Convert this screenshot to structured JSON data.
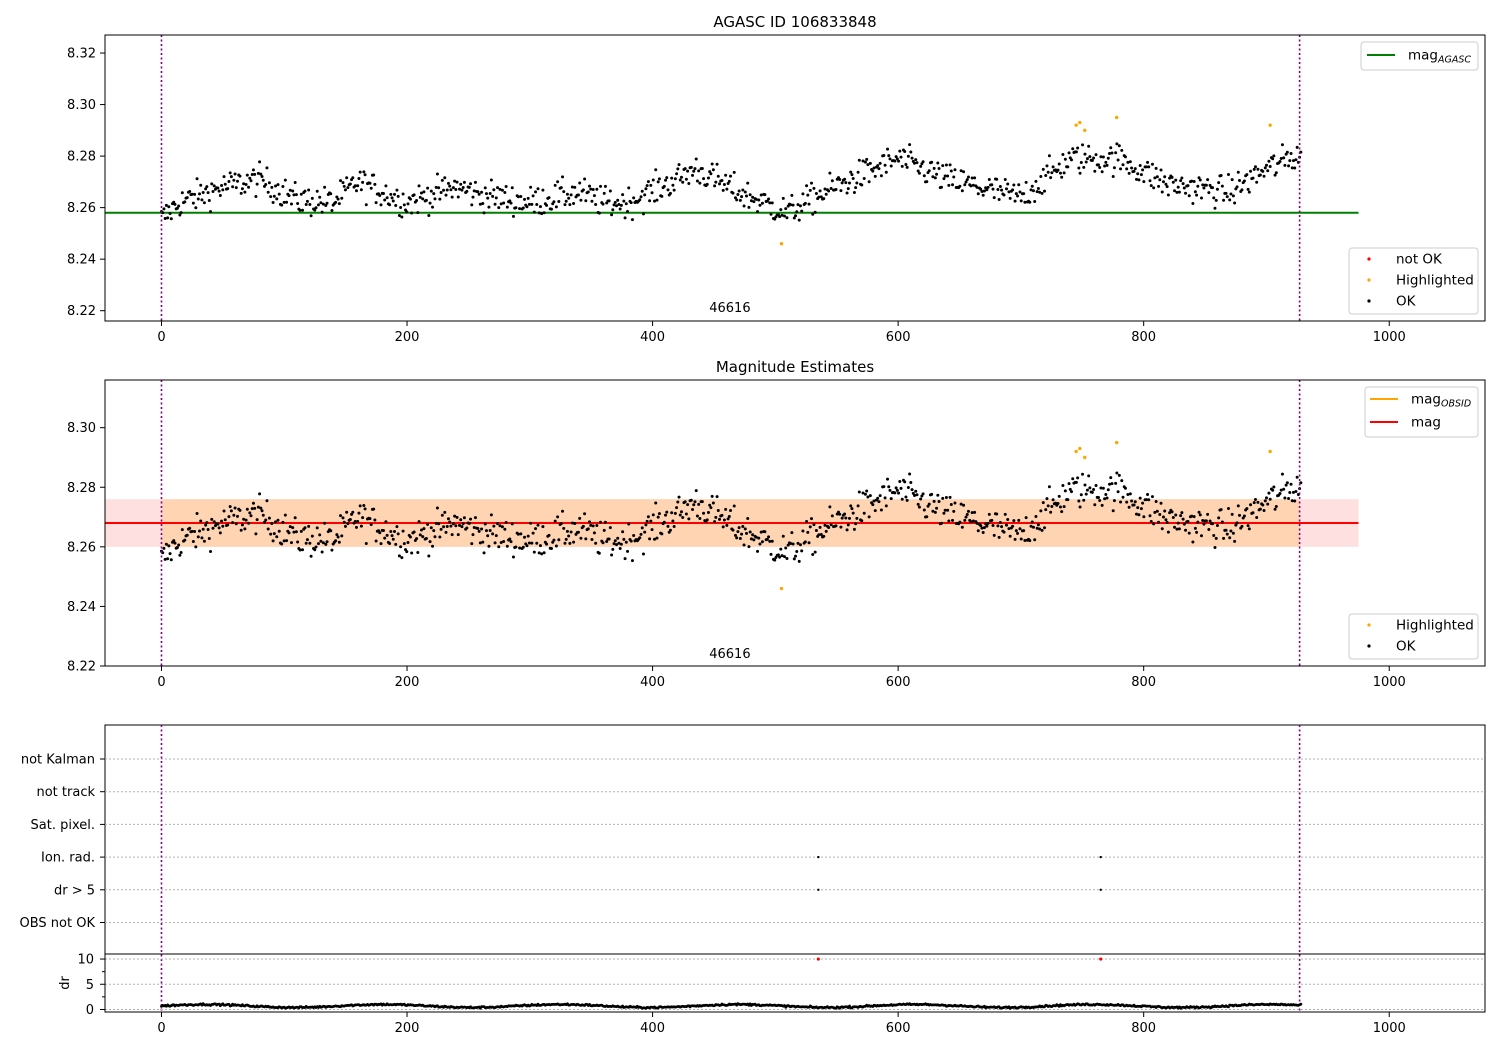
{
  "chart_data": [
    {
      "type": "scatter",
      "title": "AGASC ID 106833848",
      "xlim": [
        -46,
        1078
      ],
      "ylim": [
        8.216,
        8.327
      ],
      "xticks": [
        0,
        200,
        400,
        600,
        800,
        1000
      ],
      "yticks": [
        8.22,
        8.24,
        8.26,
        8.28,
        8.3,
        8.32
      ],
      "obsid_label": {
        "text": "46616",
        "x": 463,
        "y": 8.221
      },
      "obsid_boundaries": [
        0,
        927
      ],
      "mag_agasc": 8.258,
      "mag_agasc_xrange": [
        -46,
        975
      ],
      "legend_lines": [
        {
          "name": "mag",
          "sub": "AGASC",
          "color": "#008000"
        }
      ],
      "legend_points": [
        {
          "name": "not OK",
          "color": "#ff0000"
        },
        {
          "name": "Highlighted",
          "color": "#ffa500"
        },
        {
          "name": "OK",
          "color": "#000000"
        }
      ],
      "series": [
        {
          "name": "OK",
          "color": "#000000",
          "n_points": 930
        },
        {
          "name": "Highlighted",
          "color": "#ffa500",
          "points": [
            [
              505,
              8.246
            ],
            [
              745,
              8.292
            ],
            [
              748,
              8.293
            ],
            [
              752,
              8.29
            ],
            [
              778,
              8.295
            ],
            [
              903,
              8.292
            ]
          ]
        }
      ]
    },
    {
      "type": "scatter",
      "title": "Magnitude Estimates",
      "xlim": [
        -46,
        1078
      ],
      "ylim": [
        8.22,
        8.316
      ],
      "xticks": [
        0,
        200,
        400,
        600,
        800,
        1000
      ],
      "yticks": [
        8.22,
        8.24,
        8.26,
        8.28,
        8.3
      ],
      "obsid_label": {
        "text": "46616",
        "x": 463,
        "y": 8.224
      },
      "obsid_boundaries": [
        0,
        927
      ],
      "mag": 8.268,
      "mag_band": [
        8.26,
        8.276
      ],
      "mag_obsid": 8.268,
      "mag_obsid_band": [
        8.26,
        8.276
      ],
      "legend_lines": [
        {
          "name": "mag",
          "sub": "OBSID",
          "color": "#ffa500"
        },
        {
          "name": "mag",
          "sub": "",
          "color": "#ff0000"
        }
      ],
      "legend_points": [
        {
          "name": "Highlighted",
          "color": "#ffa500"
        },
        {
          "name": "OK",
          "color": "#000000"
        }
      ]
    },
    {
      "type": "scatter",
      "categories": [
        "not Kalman",
        "not track",
        "Sat. pixel.",
        "Ion. rad.",
        "dr > 5",
        "OBS not OK"
      ],
      "flag_points": [
        {
          "category": "Ion. rad.",
          "x": [
            535,
            765
          ]
        },
        {
          "category": "dr > 5",
          "x": [
            535,
            765
          ]
        }
      ],
      "obsid_boundaries": [
        0,
        927
      ]
    },
    {
      "type": "scatter",
      "ylabel": "dr",
      "xlim": [
        -46,
        1078
      ],
      "ylim": [
        -0.5,
        11
      ],
      "xticks": [
        0,
        200,
        400,
        600,
        800,
        1000
      ],
      "yticks": [
        0,
        5,
        10
      ],
      "outliers": [
        [
          535,
          10
        ],
        [
          765,
          10
        ]
      ],
      "outlier_color": "#ff0000",
      "baseline_mean": 0.7
    }
  ]
}
